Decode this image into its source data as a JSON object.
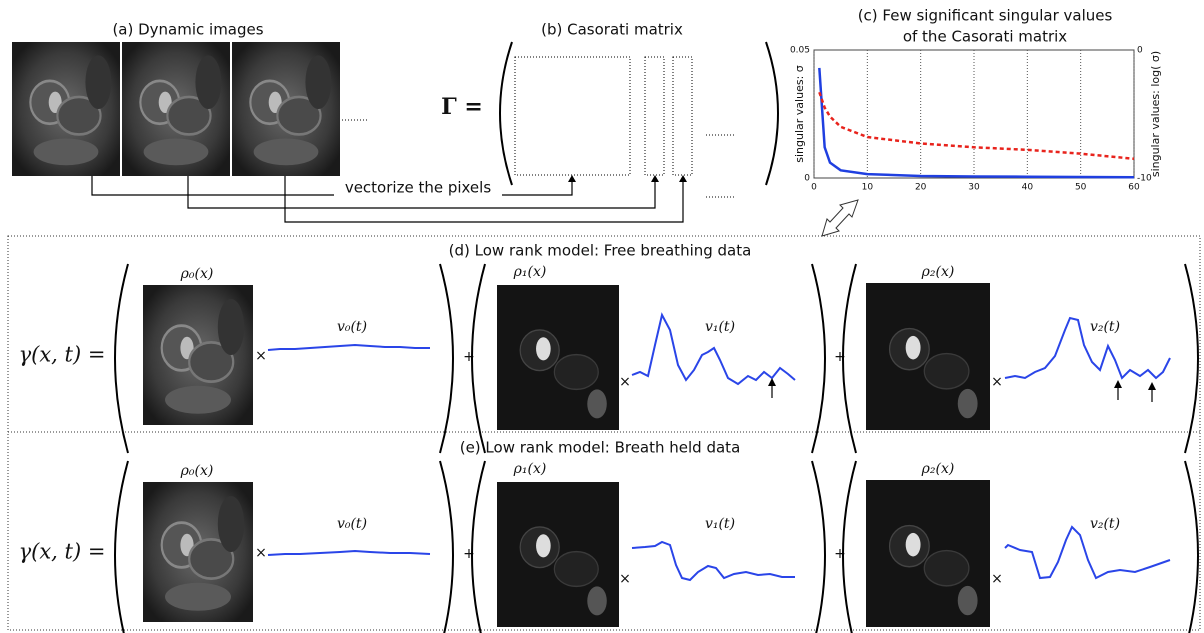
{
  "panel_a": {
    "title": "(a) Dynamic images"
  },
  "panel_b": {
    "title": "(b) Casorati matrix",
    "symbol": "Γ ="
  },
  "arrow_label": "vectorize the pixels",
  "chart_data": {
    "type": "line",
    "title": "(c) Few significant singular values",
    "subtitle": "of the Casorati matrix",
    "ylabel": "singular values: σ",
    "y2label": "singular values: log( σ)",
    "x": [
      1,
      2,
      3,
      5,
      10,
      20,
      30,
      40,
      50,
      60
    ],
    "series": [
      {
        "color": "#1f3fe0",
        "values": [
          0.043,
          0.012,
          0.006,
          0.003,
          0.0015,
          0.0008,
          0.0006,
          0.0005,
          0.0004,
          0.0003
        ]
      },
      {
        "color": "#e8231c",
        "axis": "y2",
        "dashed": true,
        "values": [
          -3.3,
          -4.5,
          -5.2,
          -6.0,
          -6.8,
          -7.3,
          -7.6,
          -7.8,
          -8.1,
          -8.5
        ]
      }
    ],
    "xlim": [
      0,
      60
    ],
    "xticks": [
      0,
      10,
      20,
      30,
      40,
      50,
      60
    ],
    "ylim": [
      0,
      0.05
    ],
    "yticks": [
      0,
      0.05
    ],
    "y2lim": [
      -10,
      0
    ],
    "y2ticks": [
      -10,
      0
    ],
    "grid": true
  },
  "rows": [
    {
      "title": "(d) Low rank model: Free breathing data",
      "lhs": "γ(x, t) =",
      "times": "×",
      "plus": "+",
      "terms": [
        {
          "basis": "ρ₀(x)",
          "temporal": "v₀(t)"
        },
        {
          "basis": "ρ₁(x)",
          "temporal": "v₁(t)"
        },
        {
          "basis": "ρ₂(x)",
          "temporal": "v₂(t)"
        }
      ]
    },
    {
      "title": "(e) Low rank model: Breath held data",
      "lhs": "γ(x, t) =",
      "times": "×",
      "plus": "+",
      "terms": [
        {
          "basis": "ρ₀(x)",
          "temporal": "v₀(t)"
        },
        {
          "basis": "ρ₁(x)",
          "temporal": "v₁(t)"
        },
        {
          "basis": "ρ₂(x)",
          "temporal": "v₂(t)"
        }
      ]
    }
  ]
}
